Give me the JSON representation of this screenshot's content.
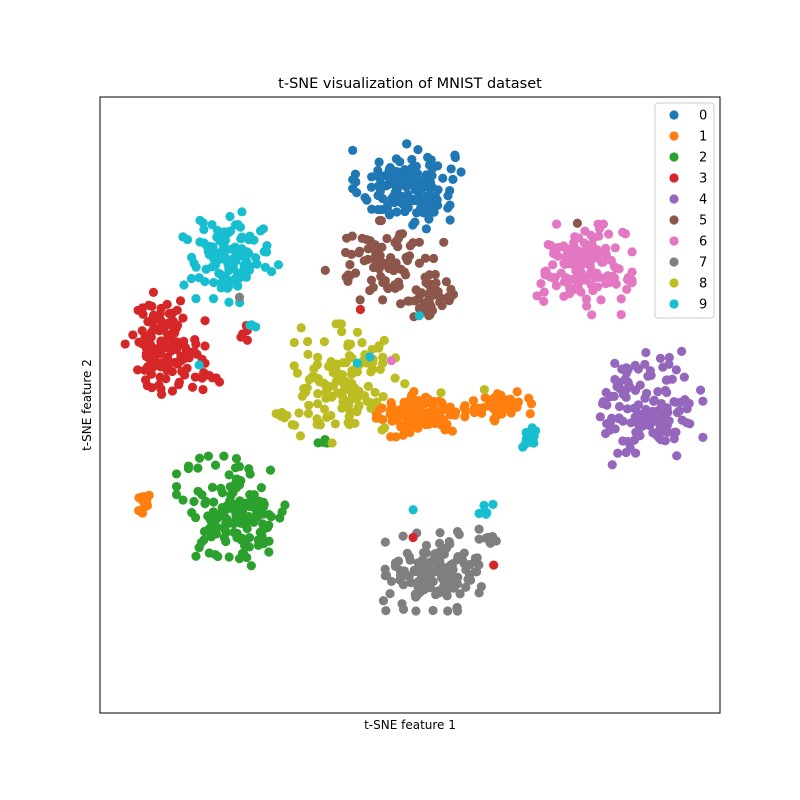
{
  "chart_data": {
    "type": "scatter",
    "title": "t-SNE visualization of MNIST dataset",
    "xlabel": "t-SNE feature 1",
    "ylabel": "t-SNE feature 2",
    "xlim": [
      -50,
      50
    ],
    "ylim": [
      -50,
      50
    ],
    "ticks_visible": false,
    "grid": false,
    "legend": {
      "placement": "top-right"
    },
    "series": [
      {
        "name": "0",
        "color": "#1f77b4",
        "clusters": [
          {
            "cx": -0.5,
            "cy": 35.5,
            "sx": 3.8,
            "sy": 3.0,
            "n": 160
          }
        ]
      },
      {
        "name": "1",
        "color": "#ff7f0e",
        "clusters": [
          {
            "cx": 1.0,
            "cy": -1.5,
            "sx": 2.8,
            "sy": 1.6,
            "n": 110
          },
          {
            "cx": 15.0,
            "cy": -0.2,
            "sx": 2.0,
            "sy": 1.2,
            "n": 45
          },
          {
            "cx": 8.5,
            "cy": -0.5,
            "sx": 2.0,
            "sy": 1.4,
            "n": 14
          },
          {
            "cx": -42.8,
            "cy": -16.0,
            "sx": 0.6,
            "sy": 1.0,
            "n": 14
          }
        ]
      },
      {
        "name": "2",
        "color": "#2ca02c",
        "clusters": [
          {
            "cx": -28.0,
            "cy": -17.5,
            "sx": 4.2,
            "sy": 4.0,
            "n": 150
          },
          {
            "cx": -14.0,
            "cy": -6.0,
            "sx": 0.6,
            "sy": 0.4,
            "n": 5
          }
        ]
      },
      {
        "name": "3",
        "color": "#d62728",
        "clusters": [
          {
            "cx": -39.5,
            "cy": 10.0,
            "sx": 2.8,
            "sy": 3.6,
            "n": 130
          },
          {
            "cx": -32.5,
            "cy": 4.0,
            "sx": 1.4,
            "sy": 0.8,
            "n": 8
          },
          {
            "cx": -26.5,
            "cy": 12.0,
            "sx": 0.6,
            "sy": 0.8,
            "n": 5
          }
        ]
      },
      {
        "name": "4",
        "color": "#9467bd",
        "clusters": [
          {
            "cx": 38.5,
            "cy": -0.5,
            "sx": 3.8,
            "sy": 4.0,
            "n": 140
          }
        ]
      },
      {
        "name": "5",
        "color": "#8c564b",
        "clusters": [
          {
            "cx": -4.0,
            "cy": 23.5,
            "sx": 4.2,
            "sy": 2.8,
            "n": 85
          },
          {
            "cx": 3.2,
            "cy": 17.5,
            "sx": 2.4,
            "sy": 1.6,
            "n": 45
          }
        ]
      },
      {
        "name": "6",
        "color": "#e377c2",
        "clusters": [
          {
            "cx": 28.0,
            "cy": 22.0,
            "sx": 3.4,
            "sy": 3.2,
            "n": 150
          }
        ]
      },
      {
        "name": "7",
        "color": "#7f7f7f",
        "clusters": [
          {
            "cx": 4.0,
            "cy": -27.0,
            "sx": 3.6,
            "sy": 2.8,
            "n": 135
          },
          {
            "cx": 12.5,
            "cy": -21.5,
            "sx": 1.2,
            "sy": 0.6,
            "n": 8
          }
        ]
      },
      {
        "name": "8",
        "color": "#bcbd22",
        "clusters": [
          {
            "cx": -10.5,
            "cy": 3.5,
            "sx": 4.2,
            "sy": 4.2,
            "n": 135
          },
          {
            "cx": -21.0,
            "cy": -1.8,
            "sx": 0.7,
            "sy": 0.3,
            "n": 5
          }
        ]
      },
      {
        "name": "9",
        "color": "#17becf",
        "clusters": [
          {
            "cx": -29.5,
            "cy": 24.0,
            "sx": 3.6,
            "sy": 3.2,
            "n": 110
          },
          {
            "cx": 19.8,
            "cy": -5.0,
            "sx": 0.7,
            "sy": 0.8,
            "n": 14
          },
          {
            "cx": 12.0,
            "cy": -17.0,
            "sx": 0.6,
            "sy": 0.6,
            "n": 6
          },
          {
            "cx": -25.8,
            "cy": 13.0,
            "sx": 0.4,
            "sy": 0.4,
            "n": 3
          }
        ]
      }
    ],
    "outliers": [
      {
        "label": "3",
        "x": -8.0,
        "y": 15.5
      },
      {
        "label": "3",
        "x": 0.5,
        "y": -21.5
      },
      {
        "label": "3",
        "x": 13.5,
        "y": -26.0
      },
      {
        "label": "9",
        "x": -8.5,
        "y": 6.8
      },
      {
        "label": "9",
        "x": -6.5,
        "y": 7.8
      },
      {
        "label": "9",
        "x": 0.5,
        "y": -17.0
      },
      {
        "label": "9",
        "x": -34.0,
        "y": 6.5
      },
      {
        "label": "9",
        "x": 1.5,
        "y": 14.5
      },
      {
        "label": "6",
        "x": -3.0,
        "y": 7.2
      },
      {
        "label": "8",
        "x": 5.0,
        "y": 2.0
      },
      {
        "label": "8",
        "x": 12.0,
        "y": 2.5
      },
      {
        "label": "1",
        "x": -4.5,
        "y": -0.5
      },
      {
        "label": "5",
        "x": 27.0,
        "y": 29.5
      },
      {
        "label": "7",
        "x": -27.5,
        "y": 17.5
      }
    ]
  }
}
